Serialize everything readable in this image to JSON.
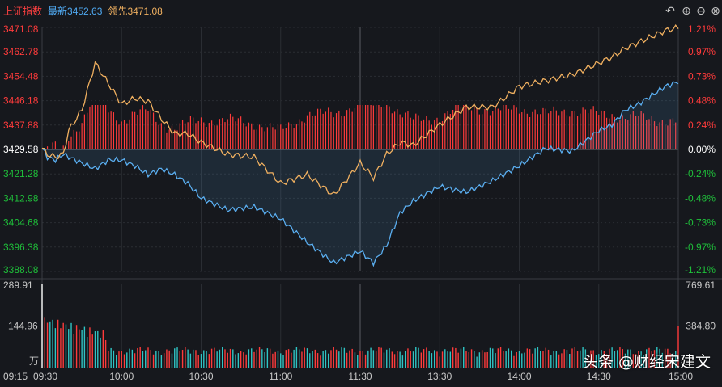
{
  "header": {
    "index_name": "上证指数",
    "latest_label": "最新",
    "latest_value": "3452.63",
    "leading_label": "领先",
    "leading_value": "3471.08"
  },
  "toolbar": {
    "undo_icon": "undo-icon",
    "zoom_in_icon": "zoom-in-icon",
    "zoom_out_icon": "zoom-out-icon",
    "close_icon": "close-icon"
  },
  "watermark": "头条 @财经宋建文",
  "colors": {
    "background": "#16181d",
    "grid": "#2a2d33",
    "up": "#ff3b3b",
    "down": "#1fbf3a",
    "flat": "#ffffff",
    "index_line": "#5aaef0",
    "leading_line": "#f0b060",
    "latest_text": "#4fa8f0",
    "leading_text": "#f0b060",
    "volume_up": "#ff3b3b",
    "volume_down": "#2fc4c4"
  },
  "chart_data": {
    "type": "line",
    "price_axis": {
      "ticks": [
        "3471.08",
        "3462.78",
        "3454.48",
        "3446.18",
        "3437.88",
        "3429.58",
        "3421.28",
        "3412.98",
        "3404.68",
        "3396.38",
        "3388.08"
      ],
      "pct_ticks": [
        "1.21%",
        "0.97%",
        "0.73%",
        "0.48%",
        "0.24%",
        "0.00%",
        "-0.24%",
        "-0.48%",
        "-0.73%",
        "-0.97%",
        "-1.21%"
      ],
      "prev_close": 3429.58,
      "ylim": [
        3388.08,
        3471.08
      ]
    },
    "volume_axis": {
      "left_ticks": [
        "289.91",
        "144.96",
        "万"
      ],
      "right_ticks": [
        "769.61",
        "384.80"
      ],
      "ylim": [
        0,
        289.91
      ]
    },
    "time_ticks": [
      "09:15",
      "09:30",
      "10:00",
      "10:30",
      "11:00",
      "11:30",
      "13:30",
      "14:00",
      "14:30",
      "15:00"
    ],
    "series": [
      {
        "role": "index",
        "x": [
          0,
          2,
          5,
          8,
          10,
          15,
          20,
          25,
          30,
          35,
          40,
          45,
          50,
          55,
          60,
          70,
          80,
          90,
          100,
          110,
          120,
          125,
          130,
          135,
          140,
          150,
          160,
          170,
          180,
          190,
          200,
          210,
          215,
          220,
          225,
          230,
          235,
          240
        ],
        "values": [
          3430,
          3427,
          3426,
          3428,
          3427,
          3425,
          3423,
          3426,
          3426,
          3424,
          3421,
          3423,
          3421,
          3418,
          3413,
          3409,
          3410,
          3406,
          3398,
          3391,
          3395,
          3391,
          3397,
          3408,
          3412,
          3417,
          3415,
          3419,
          3424,
          3430,
          3429,
          3436,
          3438,
          3443,
          3445,
          3448,
          3451,
          3452.63
        ]
      },
      {
        "role": "leading",
        "x": [
          0,
          2,
          5,
          8,
          10,
          15,
          20,
          25,
          30,
          35,
          40,
          45,
          50,
          55,
          60,
          70,
          80,
          90,
          100,
          110,
          120,
          125,
          130,
          135,
          140,
          150,
          160,
          170,
          180,
          190,
          200,
          210,
          215,
          220,
          225,
          230,
          235,
          240
        ],
        "values": [
          3430,
          3428,
          3427,
          3428,
          3436,
          3443,
          3459,
          3452,
          3445,
          3447,
          3446,
          3440,
          3435,
          3435,
          3432,
          3428,
          3427,
          3418,
          3421,
          3414,
          3425,
          3420,
          3428,
          3432,
          3431,
          3438,
          3444,
          3444,
          3451,
          3453,
          3455,
          3459,
          3461,
          3464,
          3466,
          3468,
          3470,
          3471.08
        ]
      }
    ],
    "volume": {
      "count": 240,
      "first_bar": 289.91,
      "open_peak": 140,
      "late_level": 120,
      "last_bar": 384.8
    }
  }
}
